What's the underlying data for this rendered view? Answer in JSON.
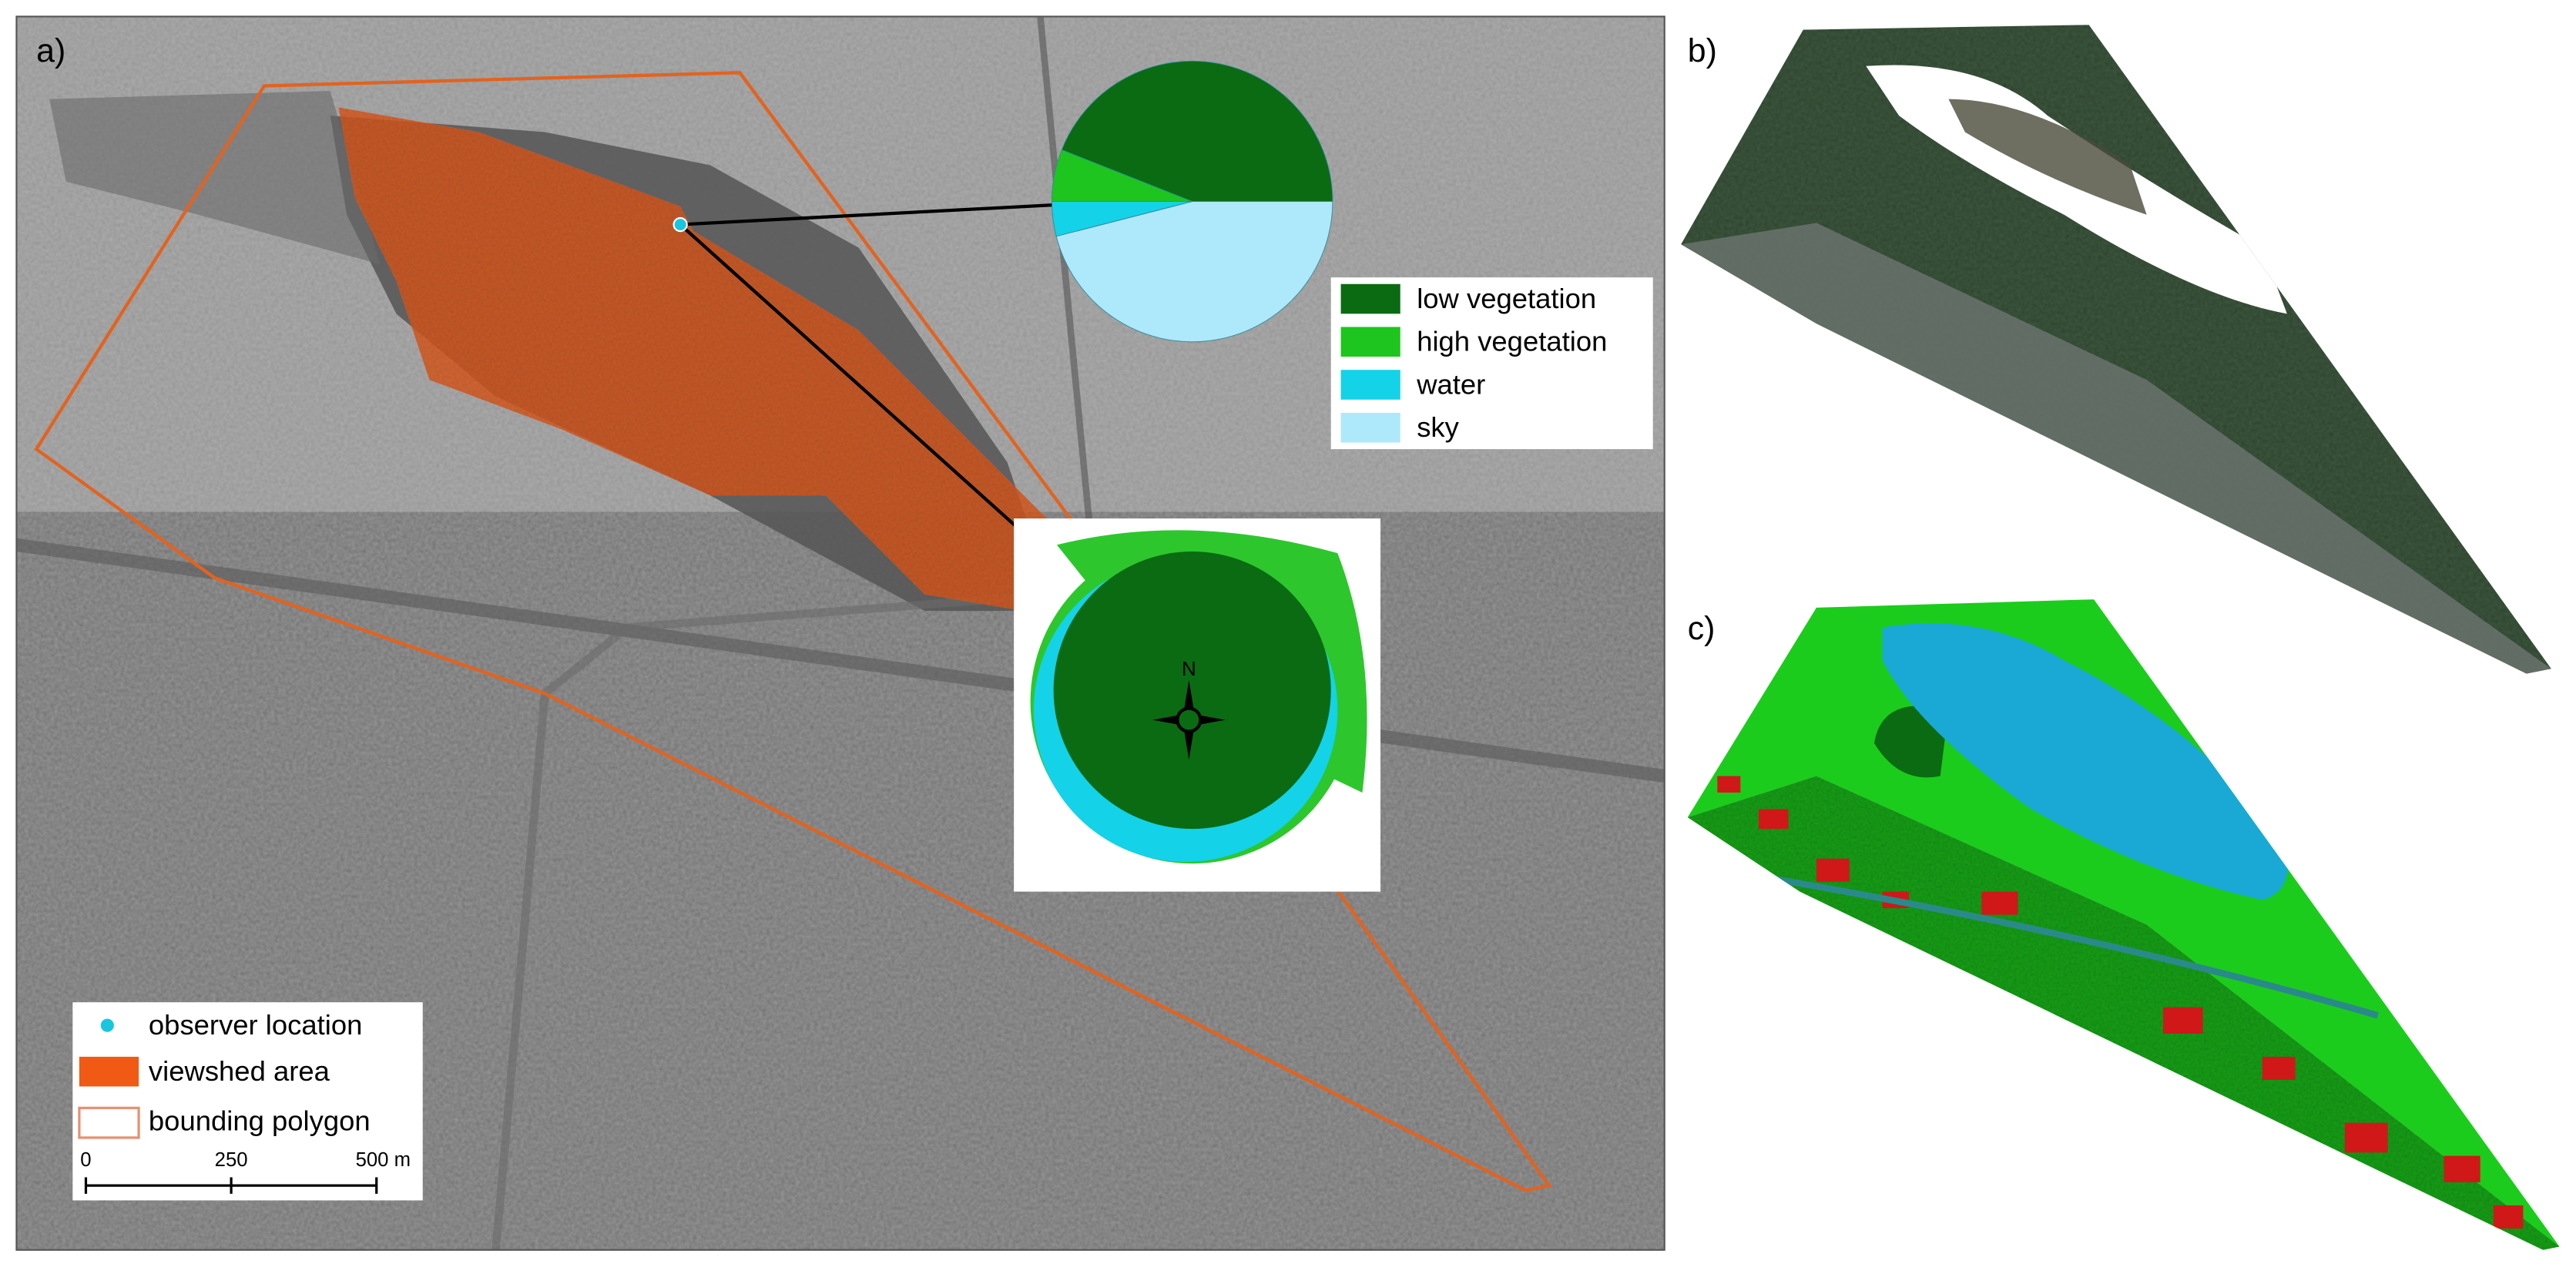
{
  "panels": {
    "a": {
      "label": "a)"
    },
    "b": {
      "label": "b)"
    },
    "c": {
      "label": "c)"
    }
  },
  "map_legend": {
    "items": [
      "observer location",
      "viewshed area",
      "bounding polygon"
    ]
  },
  "scale_bar": {
    "labels": [
      "0",
      "250",
      "500 m"
    ]
  },
  "north_arrow": {
    "label": "N"
  },
  "chart_data": {
    "type": "pie",
    "categories": [
      "low vegetation",
      "high vegetation",
      "water",
      "sky"
    ],
    "values": [
      44,
      6,
      4,
      46
    ],
    "colors": [
      "#0a6b12",
      "#1ec51e",
      "#14d2e8",
      "#aee8fb"
    ]
  }
}
